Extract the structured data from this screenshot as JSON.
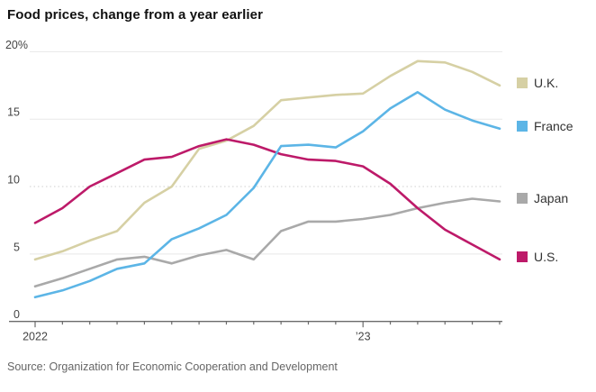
{
  "title": "Food prices, change from a year earlier",
  "source": "Source: Organization for Economic Cooperation and Development",
  "chart_data": {
    "type": "line",
    "title": "Food prices, change from a year earlier",
    "x_unit": "month",
    "x_coverage": "Jan 2022 through Jun 2023, monthly points",
    "x_tick_labels": [
      {
        "label": "2022",
        "index": 0
      },
      {
        "label": "’23",
        "index": 12
      }
    ],
    "y_ticks": [
      {
        "value": 20,
        "label": "20%",
        "style": "solid"
      },
      {
        "value": 15,
        "label": "15",
        "style": "solid"
      },
      {
        "value": 10,
        "label": "10",
        "style": "dotted"
      },
      {
        "value": 5,
        "label": "5",
        "style": "solid"
      },
      {
        "value": 0,
        "label": "0",
        "style": "axis"
      }
    ],
    "ylim": [
      0,
      20
    ],
    "grid": true,
    "legend_position": "right of plot, aligned to each line's end",
    "series": [
      {
        "name": "U.K.",
        "color": "#d6d0a4",
        "values": [
          4.6,
          5.2,
          6.0,
          6.7,
          8.8,
          10.0,
          12.8,
          13.4,
          14.5,
          16.4,
          16.6,
          16.8,
          16.9,
          18.2,
          19.3,
          19.2,
          18.5,
          17.5
        ]
      },
      {
        "name": "Japan",
        "color": "#a9a9a9",
        "values": [
          2.6,
          3.2,
          3.9,
          4.6,
          4.8,
          4.3,
          4.9,
          5.3,
          4.6,
          6.7,
          7.4,
          7.4,
          7.6,
          7.9,
          8.4,
          8.8,
          9.1,
          8.9
        ]
      },
      {
        "name": "U.S.",
        "color": "#bd1a69",
        "values": [
          7.3,
          8.4,
          10.0,
          11.0,
          12.0,
          12.2,
          13.0,
          13.5,
          13.1,
          12.4,
          12.0,
          11.9,
          11.5,
          10.2,
          8.4,
          6.8,
          5.7,
          4.6
        ]
      },
      {
        "name": "France",
        "color": "#5cb5e6",
        "values": [
          1.8,
          2.3,
          3.0,
          3.9,
          4.3,
          6.1,
          6.9,
          7.9,
          9.9,
          13.0,
          13.1,
          12.9,
          14.1,
          15.8,
          17.0,
          15.7,
          14.9,
          14.3
        ]
      }
    ],
    "legend_order": [
      "U.K.",
      "France",
      "Japan",
      "U.S."
    ],
    "colors": {
      "uk": "#d6d0a4",
      "france": "#5cb5e6",
      "japan": "#a9a9a9",
      "us": "#bd1a69",
      "grid": "#e8e8e8",
      "grid_dotted": "#cfcfcf",
      "axis": "#6b6b6b",
      "tick_label": "#444444",
      "source_text": "#666666"
    }
  }
}
